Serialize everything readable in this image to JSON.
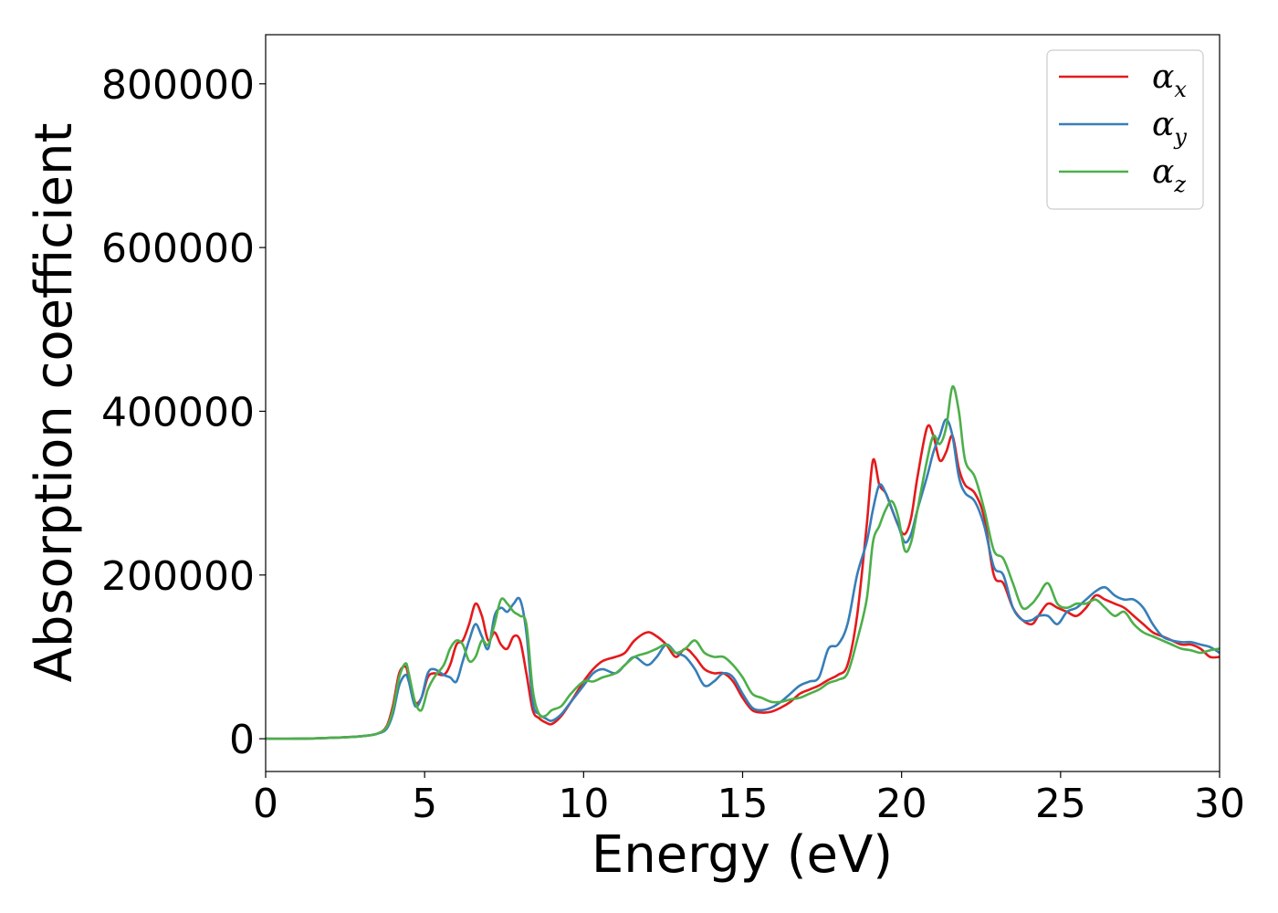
{
  "chart_data": {
    "type": "line",
    "title": "",
    "xlabel": "Energy (eV)",
    "ylabel": "Absorption coefficient",
    "xlim": [
      0,
      30
    ],
    "ylim": [
      -40000,
      860000
    ],
    "xticks": [
      0,
      5,
      10,
      15,
      20,
      25,
      30
    ],
    "yticks": [
      0,
      200000,
      400000,
      600000,
      800000
    ],
    "grid": false,
    "legend_position": "top-right",
    "series": [
      {
        "name": "α_x",
        "base": "α",
        "sub": "x",
        "color": "#e41a1c",
        "x": [
          0,
          1,
          2,
          3,
          3.5,
          3.8,
          4.0,
          4.2,
          4.4,
          4.5,
          4.7,
          4.9,
          5.1,
          5.3,
          5.6,
          5.8,
          6.0,
          6.2,
          6.4,
          6.6,
          6.8,
          7.0,
          7.2,
          7.4,
          7.6,
          7.8,
          8.0,
          8.2,
          8.4,
          8.6,
          8.8,
          9.0,
          9.3,
          9.6,
          10.0,
          10.3,
          10.6,
          11.0,
          11.3,
          11.6,
          12.0,
          12.3,
          12.6,
          12.9,
          13.2,
          13.5,
          13.8,
          14.1,
          14.4,
          14.7,
          15.0,
          15.3,
          15.6,
          15.9,
          16.2,
          16.5,
          16.8,
          17.1,
          17.4,
          17.7,
          18.0,
          18.3,
          18.6,
          18.9,
          19.1,
          19.3,
          19.5,
          19.7,
          19.9,
          20.1,
          20.3,
          20.5,
          20.8,
          21.0,
          21.2,
          21.4,
          21.6,
          21.8,
          22.0,
          22.3,
          22.6,
          22.9,
          23.2,
          23.5,
          23.8,
          24.1,
          24.3,
          24.6,
          24.9,
          25.2,
          25.5,
          25.8,
          26.1,
          26.4,
          26.7,
          27.0,
          27.3,
          27.6,
          27.9,
          28.2,
          28.5,
          28.8,
          29.1,
          29.4,
          29.7,
          30.0
        ],
        "y": [
          0,
          0,
          1000,
          3000,
          6000,
          15000,
          40000,
          80000,
          88000,
          75000,
          45000,
          50000,
          75000,
          80000,
          78000,
          90000,
          115000,
          120000,
          140000,
          165000,
          150000,
          120000,
          130000,
          115000,
          110000,
          125000,
          120000,
          80000,
          35000,
          25000,
          20000,
          18000,
          28000,
          45000,
          70000,
          85000,
          95000,
          100000,
          105000,
          120000,
          130000,
          125000,
          115000,
          100000,
          110000,
          100000,
          85000,
          80000,
          80000,
          70000,
          50000,
          35000,
          32000,
          33000,
          38000,
          45000,
          55000,
          60000,
          65000,
          72000,
          78000,
          90000,
          150000,
          260000,
          340000,
          310000,
          300000,
          280000,
          260000,
          250000,
          270000,
          320000,
          380000,
          370000,
          340000,
          350000,
          370000,
          330000,
          310000,
          300000,
          270000,
          200000,
          190000,
          160000,
          145000,
          140000,
          150000,
          165000,
          160000,
          155000,
          150000,
          160000,
          175000,
          170000,
          165000,
          160000,
          150000,
          140000,
          130000,
          125000,
          120000,
          115000,
          115000,
          110000,
          100000,
          100000
        ]
      },
      {
        "name": "α_y",
        "base": "α",
        "sub": "y",
        "color": "#377eb8",
        "x": [
          0,
          1,
          2,
          3,
          3.5,
          3.8,
          4.0,
          4.2,
          4.4,
          4.5,
          4.7,
          4.9,
          5.1,
          5.3,
          5.6,
          5.8,
          6.0,
          6.2,
          6.4,
          6.6,
          6.8,
          7.0,
          7.2,
          7.4,
          7.6,
          7.8,
          8.0,
          8.2,
          8.4,
          8.6,
          8.8,
          9.0,
          9.3,
          9.6,
          10.0,
          10.3,
          10.6,
          11.0,
          11.3,
          11.6,
          12.0,
          12.3,
          12.6,
          12.9,
          13.2,
          13.5,
          13.8,
          14.1,
          14.4,
          14.7,
          15.0,
          15.3,
          15.6,
          15.9,
          16.2,
          16.5,
          16.8,
          17.1,
          17.4,
          17.7,
          18.0,
          18.3,
          18.6,
          18.9,
          19.1,
          19.3,
          19.5,
          19.7,
          19.9,
          20.1,
          20.3,
          20.5,
          20.8,
          21.0,
          21.2,
          21.4,
          21.6,
          21.8,
          22.0,
          22.3,
          22.6,
          22.9,
          23.2,
          23.5,
          23.8,
          24.1,
          24.3,
          24.6,
          24.9,
          25.2,
          25.5,
          25.8,
          26.1,
          26.4,
          26.7,
          27.0,
          27.3,
          27.6,
          27.9,
          28.2,
          28.5,
          28.8,
          29.1,
          29.4,
          29.7,
          30.0
        ],
        "y": [
          0,
          0,
          1000,
          3000,
          6000,
          12000,
          30000,
          65000,
          78000,
          70000,
          40000,
          50000,
          80000,
          85000,
          78000,
          75000,
          70000,
          95000,
          120000,
          140000,
          125000,
          110000,
          150000,
          160000,
          155000,
          165000,
          170000,
          130000,
          45000,
          30000,
          25000,
          22000,
          30000,
          45000,
          65000,
          80000,
          85000,
          80000,
          90000,
          100000,
          90000,
          100000,
          115000,
          105000,
          100000,
          85000,
          65000,
          70000,
          80000,
          75000,
          55000,
          38000,
          35000,
          38000,
          45000,
          55000,
          65000,
          70000,
          75000,
          110000,
          115000,
          140000,
          200000,
          240000,
          280000,
          310000,
          300000,
          280000,
          260000,
          240000,
          250000,
          280000,
          320000,
          350000,
          370000,
          390000,
          370000,
          320000,
          300000,
          290000,
          260000,
          210000,
          200000,
          160000,
          145000,
          145000,
          150000,
          150000,
          140000,
          155000,
          160000,
          170000,
          180000,
          185000,
          175000,
          170000,
          170000,
          160000,
          140000,
          125000,
          120000,
          118000,
          118000,
          115000,
          112000,
          105000
        ]
      },
      {
        "name": "α_z",
        "base": "α",
        "sub": "z",
        "color": "#4daf4a",
        "x": [
          0,
          1,
          2,
          3,
          3.5,
          3.8,
          4.0,
          4.2,
          4.4,
          4.5,
          4.7,
          4.9,
          5.1,
          5.3,
          5.6,
          5.8,
          6.0,
          6.2,
          6.4,
          6.6,
          6.8,
          7.0,
          7.2,
          7.4,
          7.6,
          7.8,
          8.0,
          8.2,
          8.4,
          8.6,
          8.8,
          9.0,
          9.3,
          9.6,
          10.0,
          10.3,
          10.6,
          11.0,
          11.3,
          11.6,
          12.0,
          12.3,
          12.6,
          12.9,
          13.2,
          13.5,
          13.8,
          14.1,
          14.4,
          14.7,
          15.0,
          15.3,
          15.6,
          15.9,
          16.2,
          16.5,
          16.8,
          17.1,
          17.4,
          17.7,
          18.0,
          18.3,
          18.6,
          18.9,
          19.1,
          19.3,
          19.5,
          19.7,
          19.9,
          20.1,
          20.3,
          20.5,
          20.8,
          21.0,
          21.2,
          21.4,
          21.6,
          21.8,
          22.0,
          22.3,
          22.6,
          22.9,
          23.2,
          23.5,
          23.8,
          24.1,
          24.3,
          24.6,
          24.9,
          25.2,
          25.5,
          25.8,
          26.1,
          26.4,
          26.7,
          27.0,
          27.3,
          27.6,
          27.9,
          28.2,
          28.5,
          28.8,
          29.1,
          29.4,
          29.7,
          30.0
        ],
        "y": [
          0,
          0,
          1000,
          3000,
          6000,
          14000,
          35000,
          75000,
          92000,
          80000,
          45000,
          35000,
          60000,
          75000,
          90000,
          110000,
          120000,
          115000,
          95000,
          100000,
          120000,
          115000,
          140000,
          170000,
          165000,
          155000,
          150000,
          140000,
          60000,
          30000,
          28000,
          35000,
          40000,
          55000,
          70000,
          70000,
          75000,
          80000,
          90000,
          100000,
          105000,
          110000,
          115000,
          105000,
          110000,
          120000,
          105000,
          100000,
          100000,
          90000,
          75000,
          55000,
          50000,
          45000,
          45000,
          48000,
          50000,
          55000,
          60000,
          68000,
          72000,
          80000,
          120000,
          170000,
          240000,
          260000,
          280000,
          290000,
          270000,
          230000,
          240000,
          280000,
          340000,
          370000,
          360000,
          380000,
          430000,
          400000,
          340000,
          320000,
          280000,
          230000,
          220000,
          190000,
          160000,
          165000,
          175000,
          190000,
          165000,
          160000,
          165000,
          165000,
          170000,
          160000,
          150000,
          155000,
          140000,
          130000,
          125000,
          120000,
          115000,
          110000,
          108000,
          105000,
          108000,
          110000
        ]
      }
    ]
  }
}
